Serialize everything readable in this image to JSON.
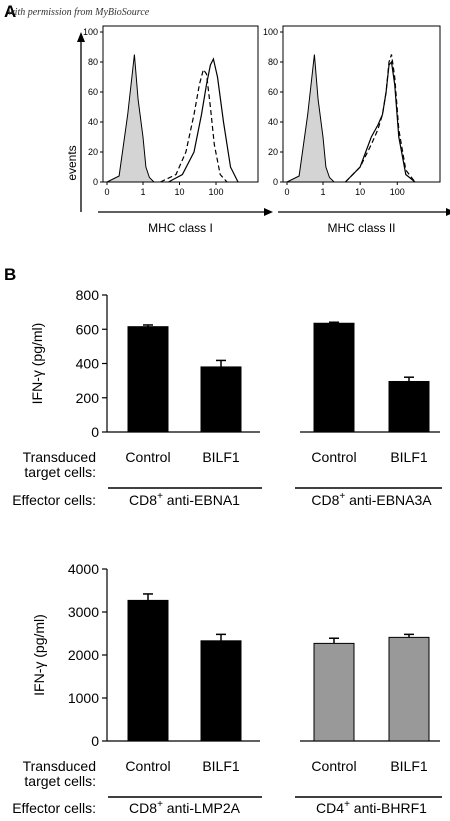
{
  "figure": {
    "watermark": "with permission from MyBioSource",
    "panel_a_letter": "A",
    "panel_b_letter": "B"
  },
  "chart_data": [
    {
      "type": "line",
      "panel": "A",
      "xlabel": "MHC class I",
      "ylabel": "events",
      "x_scale": "log",
      "x_ticks": [
        "0",
        "1",
        "10",
        "100"
      ],
      "y_ticks": [
        "0",
        "20",
        "40",
        "60",
        "80",
        "100"
      ],
      "ylim": [
        0,
        100
      ],
      "series": [
        {
          "style": "filled-gray",
          "x": [
            0.3,
            0.45,
            0.6,
            0.75,
            0.85,
            1.0,
            1.2,
            1.5,
            2.0
          ],
          "y": [
            0,
            4,
            45,
            85,
            55,
            30,
            10,
            3,
            0
          ]
        },
        {
          "style": "dashed",
          "x": [
            3,
            8,
            15,
            25,
            35,
            45,
            55,
            70,
            90,
            130,
            200
          ],
          "y": [
            0,
            5,
            20,
            45,
            65,
            75,
            72,
            50,
            25,
            5,
            0
          ]
        },
        {
          "style": "solid",
          "x": [
            5,
            12,
            25,
            40,
            55,
            70,
            85,
            110,
            160,
            250,
            400
          ],
          "y": [
            0,
            5,
            20,
            45,
            65,
            78,
            82,
            70,
            40,
            10,
            0
          ]
        }
      ]
    },
    {
      "type": "line",
      "panel": "A",
      "xlabel": "MHC class II",
      "ylabel": "",
      "x_scale": "log",
      "x_ticks": [
        "0",
        "1",
        "10",
        "100"
      ],
      "y_ticks": [
        "0",
        "20",
        "40",
        "60",
        "80",
        "100"
      ],
      "ylim": [
        0,
        100
      ],
      "series": [
        {
          "style": "filled-gray",
          "x": [
            0.3,
            0.45,
            0.6,
            0.75,
            0.85,
            1.0,
            1.2,
            1.5,
            2.0
          ],
          "y": [
            0,
            4,
            45,
            85,
            55,
            30,
            10,
            3,
            0
          ]
        },
        {
          "style": "dashed",
          "x": [
            4,
            10,
            20,
            30,
            40,
            50,
            60,
            70,
            85,
            110,
            170,
            300
          ],
          "y": [
            0,
            10,
            25,
            35,
            45,
            60,
            80,
            85,
            70,
            35,
            8,
            0
          ]
        },
        {
          "style": "solid",
          "x": [
            4,
            10,
            20,
            30,
            40,
            50,
            60,
            70,
            85,
            110,
            170,
            300
          ],
          "y": [
            0,
            10,
            30,
            38,
            45,
            60,
            78,
            80,
            65,
            30,
            5,
            0
          ]
        }
      ]
    },
    {
      "type": "bar",
      "panel": "B",
      "ylabel": "IFN-γ (pg/ml)",
      "ylim": [
        0,
        800
      ],
      "y_ticks": [
        "0",
        "200",
        "400",
        "600",
        "800"
      ],
      "row1_label": "Transduced\ntarget cells:",
      "row2_label": "Effector cells:",
      "groups": [
        {
          "effector_main": "CD8",
          "effector_sup": "+",
          "effector_rest": " anti-EBNA1",
          "categories": [
            "Control",
            "BILF1"
          ],
          "values": [
            615,
            380
          ],
          "errors": [
            10,
            38
          ],
          "color": "#000000"
        },
        {
          "effector_main": "CD8",
          "effector_sup": "+",
          "effector_rest": " anti-EBNA3A",
          "categories": [
            "Control",
            "BILF1"
          ],
          "values": [
            635,
            295
          ],
          "errors": [
            6,
            25
          ],
          "color": "#000000"
        }
      ]
    },
    {
      "type": "bar",
      "panel": "B",
      "ylabel": "IFN-γ (pg/ml)",
      "ylim": [
        0,
        4000
      ],
      "y_ticks": [
        "0",
        "1000",
        "2000",
        "3000",
        "4000"
      ],
      "row1_label": "Transduced\ntarget cells:",
      "row2_label": "Effector cells:",
      "groups": [
        {
          "effector_main": "CD8",
          "effector_sup": "+",
          "effector_rest": " anti-LMP2A",
          "categories": [
            "Control",
            "BILF1"
          ],
          "values": [
            3270,
            2330
          ],
          "errors": [
            150,
            150
          ],
          "color": "#000000"
        },
        {
          "effector_main": "CD4",
          "effector_sup": "+",
          "effector_rest": " anti-BHRF1",
          "categories": [
            "Control",
            "BILF1"
          ],
          "values": [
            2270,
            2410
          ],
          "errors": [
            120,
            70
          ],
          "color": "#999999"
        }
      ]
    }
  ]
}
